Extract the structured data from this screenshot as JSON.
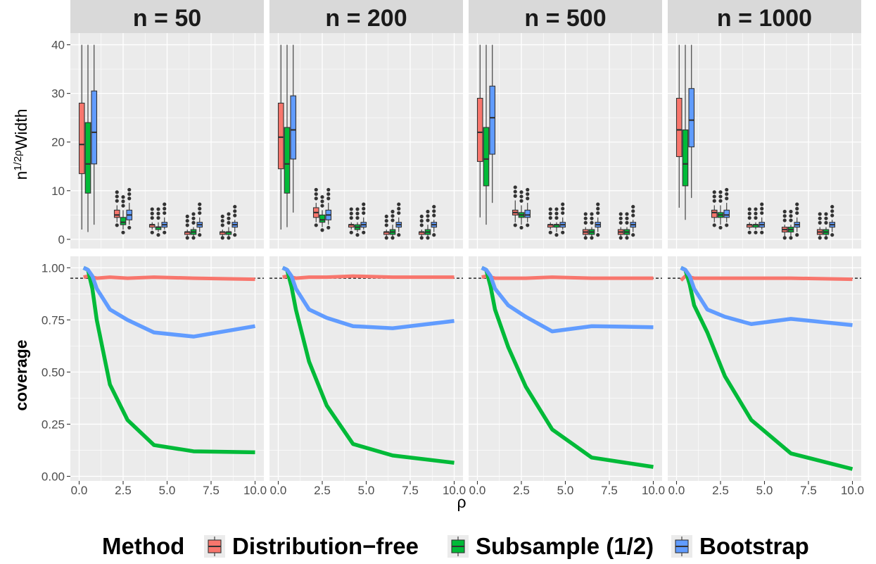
{
  "facets": [
    "n = 50",
    "n = 200",
    "n = 500",
    "n = 1000"
  ],
  "colors": {
    "Distribution-free": "#F8766D",
    "Subsample (1/2)": "#00BA38",
    "Bootstrap": "#619CFF"
  },
  "legend": {
    "title": "Method",
    "items": [
      "Distribution−free",
      "Subsample (1/2)",
      "Bootstrap"
    ]
  },
  "axes": {
    "x_title": "ρ",
    "top_y_title": {
      "base": "n",
      "exp_num": "1",
      "exp_den": "2ρ",
      "rest": "Width"
    },
    "bottom_y_title": "coverage",
    "x_ticks": [
      "0.0",
      "2.5",
      "5.0",
      "7.5",
      "10.0"
    ],
    "top_y_ticks": [
      "0",
      "10",
      "20",
      "30",
      "40"
    ],
    "bottom_y_ticks": [
      "0.00",
      "0.25",
      "0.50",
      "0.75",
      "1.00"
    ]
  },
  "chart_data": [
    {
      "type": "boxplot",
      "title": "",
      "ylabel": "n^(1/2ρ) Width",
      "xlabel": "ρ",
      "xlim": [
        0,
        10
      ],
      "ylim": [
        0,
        40
      ],
      "rho": [
        0.5,
        2.5,
        4.5,
        6.5,
        8.5
      ],
      "panels": [
        {
          "facet": "n = 50",
          "series": [
            {
              "name": "Distribution-free",
              "boxes": [
                [
                  2,
                  13.5,
                  19.5,
                  28,
                  40
                ],
                [
                  3.5,
                  4.5,
                  5,
                  6,
                  7
                ],
                [
                  2,
                  2.5,
                  3,
                  3,
                  3.5
                ],
                [
                  0.5,
                  1,
                  1.5,
                  1.5,
                  2
                ],
                [
                  0.5,
                  1,
                  1.5,
                  1.5,
                  2
                ]
              ]
            },
            {
              "name": "Subsample (1/2)",
              "boxes": [
                [
                  1.5,
                  9.5,
                  15.5,
                  24,
                  40
                ],
                [
                  2,
                  3,
                  3.5,
                  4.5,
                  6
                ],
                [
                  1.5,
                  2,
                  2.5,
                  2.5,
                  3.5
                ],
                [
                  0.5,
                  1,
                  1.5,
                  2,
                  2.5
                ],
                [
                  0.5,
                  1,
                  1.5,
                  1.5,
                  2.5
                ]
              ]
            },
            {
              "name": "Bootstrap",
              "boxes": [
                [
                  3,
                  15.5,
                  22,
                  30.5,
                  40
                ],
                [
                  3,
                  4,
                  5,
                  6,
                  7.5
                ],
                [
                  2,
                  2.5,
                  3,
                  3.5,
                  4.5
                ],
                [
                  1.5,
                  2.5,
                  3,
                  3.5,
                  4.5
                ],
                [
                  1.5,
                  2.5,
                  3,
                  3.5,
                  4
                ]
              ]
            }
          ]
        },
        {
          "facet": "n = 200",
          "series": [
            {
              "name": "Distribution-free",
              "boxes": [
                [
                  2,
                  14.5,
                  21,
                  28,
                  40
                ],
                [
                  3.5,
                  4.5,
                  5.5,
                  6.5,
                  7.5
                ],
                [
                  2,
                  2.5,
                  3,
                  3,
                  3.5
                ],
                [
                  0.5,
                  1,
                  1.5,
                  1.5,
                  2
                ],
                [
                  0.5,
                  1,
                  1.5,
                  1.5,
                  2
                ]
              ]
            },
            {
              "name": "Subsample (1/2)",
              "boxes": [
                [
                  2.5,
                  9.5,
                  15.5,
                  23,
                  40
                ],
                [
                  2.5,
                  3.5,
                  4,
                  5,
                  6
                ],
                [
                  1.5,
                  2,
                  2.5,
                  3,
                  3.5
                ],
                [
                  0.5,
                  1,
                  1.5,
                  2,
                  3
                ],
                [
                  0.5,
                  1,
                  1.5,
                  2,
                  3
                ]
              ]
            },
            {
              "name": "Bootstrap",
              "boxes": [
                [
                  5.5,
                  16.5,
                  22.5,
                  29.5,
                  40
                ],
                [
                  3,
                  4,
                  5,
                  6,
                  7.5
                ],
                [
                  2,
                  2.5,
                  3,
                  3.5,
                  4.5
                ],
                [
                  1.5,
                  2.5,
                  3,
                  3.5,
                  4.5
                ],
                [
                  1.5,
                  2.5,
                  3,
                  3.5,
                  4
                ]
              ]
            }
          ]
        },
        {
          "facet": "n = 500",
          "series": [
            {
              "name": "Distribution-free",
              "boxes": [
                [
                  4.5,
                  16,
                  22,
                  29,
                  40
                ],
                [
                  3.5,
                  5,
                  5.5,
                  6,
                  8
                ],
                [
                  2,
                  2.5,
                  3,
                  3,
                  3.5
                ],
                [
                  0.5,
                  1,
                  1.5,
                  2,
                  2.5
                ],
                [
                  0.5,
                  1,
                  1.5,
                  2,
                  2.5
                ]
              ]
            },
            {
              "name": "Subsample (1/2)",
              "boxes": [
                [
                  3,
                  11,
                  16.5,
                  23,
                  40
                ],
                [
                  3,
                  4.5,
                  5,
                  5.5,
                  7
                ],
                [
                  1.5,
                  2.5,
                  3,
                  3,
                  3.5
                ],
                [
                  0.5,
                  1,
                  1.5,
                  2,
                  2.5
                ],
                [
                  0.5,
                  1,
                  1.5,
                  2,
                  2.5
                ]
              ]
            },
            {
              "name": "Bootstrap",
              "boxes": [
                [
                  7.5,
                  17.5,
                  25,
                  31.5,
                  40
                ],
                [
                  3.5,
                  4.5,
                  5,
                  6,
                  7.5
                ],
                [
                  2,
                  2.5,
                  3,
                  3.5,
                  4.5
                ],
                [
                  1.5,
                  2.5,
                  3,
                  3.5,
                  4.5
                ],
                [
                  1.5,
                  2.5,
                  3,
                  3.5,
                  4
                ]
              ]
            }
          ]
        },
        {
          "facet": "n = 1000",
          "series": [
            {
              "name": "Distribution-free",
              "boxes": [
                [
                  6.5,
                  17,
                  22.5,
                  29,
                  40
                ],
                [
                  3.5,
                  4.5,
                  5.5,
                  6,
                  7
                ],
                [
                  2,
                  2.5,
                  3,
                  3,
                  3.5
                ],
                [
                  0.5,
                  1.5,
                  2,
                  2.5,
                  3
                ],
                [
                  0.5,
                  1,
                  1.5,
                  2,
                  2.5
                ]
              ]
            },
            {
              "name": "Subsample (1/2)",
              "boxes": [
                [
                  4,
                  11,
                  15.5,
                  22.5,
                  40
                ],
                [
                  3,
                  4.5,
                  5,
                  5.5,
                  7
                ],
                [
                  2,
                  2.5,
                  3,
                  3,
                  3.5
                ],
                [
                  0.5,
                  1.5,
                  2,
                  2.5,
                  3
                ],
                [
                  0.5,
                  1,
                  1.5,
                  2,
                  2.5
                ]
              ]
            },
            {
              "name": "Bootstrap",
              "boxes": [
                [
                  8.5,
                  19,
                  24.5,
                  31,
                  40
                ],
                [
                  3.5,
                  4.5,
                  5,
                  6,
                  7.5
                ],
                [
                  2,
                  2.5,
                  3,
                  3.5,
                  4.5
                ],
                [
                  1.5,
                  2.5,
                  3,
                  3.5,
                  4.5
                ],
                [
                  1.5,
                  2.5,
                  3,
                  3.5,
                  4
                ]
              ]
            }
          ]
        }
      ]
    },
    {
      "type": "line",
      "title": "",
      "xlabel": "ρ",
      "ylabel": "coverage",
      "xlim": [
        0,
        10
      ],
      "ylim": [
        0,
        1
      ],
      "reference_line": 0.95,
      "x": [
        0.25,
        0.5,
        0.75,
        1.0,
        1.75,
        2.75,
        4.25,
        6.5,
        10.0
      ],
      "panels": [
        {
          "facet": "n = 50",
          "series": [
            {
              "name": "Distribution-free",
              "values": [
                0.955,
                0.96,
                0.955,
                0.95,
                0.955,
                0.95,
                0.955,
                0.95,
                0.945
              ]
            },
            {
              "name": "Subsample (1/2)",
              "values": [
                1.0,
                0.99,
                0.9,
                0.75,
                0.44,
                0.27,
                0.15,
                0.12,
                0.115
              ]
            },
            {
              "name": "Bootstrap",
              "values": [
                1.0,
                0.99,
                0.96,
                0.9,
                0.8,
                0.75,
                0.69,
                0.67,
                0.72
              ]
            }
          ]
        },
        {
          "facet": "n = 200",
          "series": [
            {
              "name": "Distribution-free",
              "values": [
                0.955,
                0.96,
                0.955,
                0.95,
                0.955,
                0.955,
                0.96,
                0.955,
                0.955
              ]
            },
            {
              "name": "Subsample (1/2)",
              "values": [
                1.0,
                0.99,
                0.91,
                0.8,
                0.55,
                0.34,
                0.155,
                0.1,
                0.065
              ]
            },
            {
              "name": "Bootstrap",
              "values": [
                1.0,
                0.99,
                0.96,
                0.9,
                0.8,
                0.76,
                0.72,
                0.71,
                0.745
              ]
            }
          ]
        },
        {
          "facet": "n = 500",
          "series": [
            {
              "name": "Distribution-free",
              "values": [
                0.955,
                0.96,
                0.955,
                0.95,
                0.95,
                0.95,
                0.955,
                0.95,
                0.95
              ]
            },
            {
              "name": "Subsample (1/2)",
              "values": [
                1.0,
                0.99,
                0.91,
                0.8,
                0.62,
                0.43,
                0.225,
                0.09,
                0.045
              ]
            },
            {
              "name": "Bootstrap",
              "values": [
                1.0,
                0.99,
                0.96,
                0.9,
                0.82,
                0.765,
                0.695,
                0.72,
                0.715
              ]
            }
          ]
        },
        {
          "facet": "n = 1000",
          "series": [
            {
              "name": "Distribution-free",
              "values": [
                0.94,
                0.96,
                0.955,
                0.95,
                0.95,
                0.95,
                0.95,
                0.95,
                0.945
              ]
            },
            {
              "name": "Subsample (1/2)",
              "values": [
                1.0,
                0.99,
                0.92,
                0.82,
                0.69,
                0.48,
                0.27,
                0.11,
                0.035
              ]
            },
            {
              "name": "Bootstrap",
              "values": [
                1.0,
                0.99,
                0.96,
                0.9,
                0.8,
                0.765,
                0.73,
                0.755,
                0.725
              ]
            }
          ]
        }
      ]
    }
  ]
}
